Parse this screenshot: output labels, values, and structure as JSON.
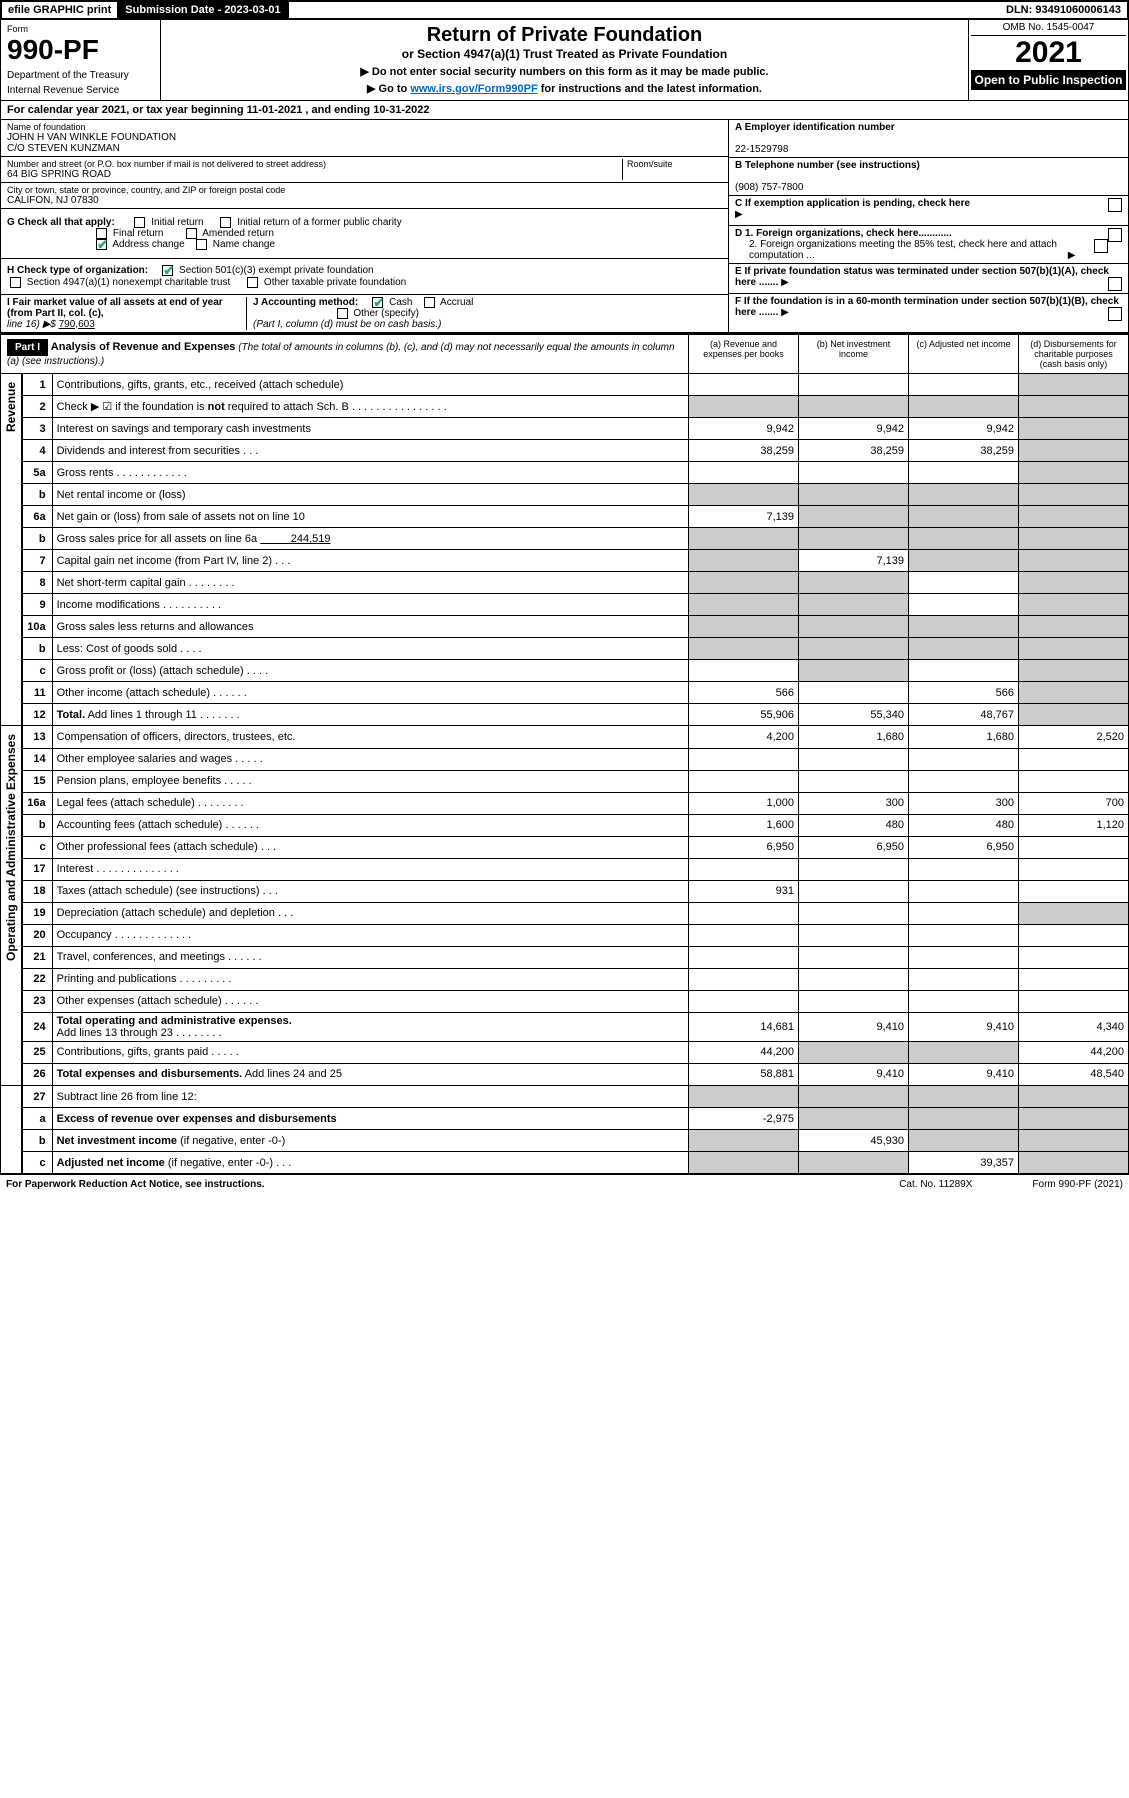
{
  "topbar": {
    "efile": "efile GRAPHIC print",
    "subdate_label": "Submission Date - 2023-03-01",
    "dln": "DLN: 93491060006143"
  },
  "header": {
    "form_label": "Form",
    "form_num": "990-PF",
    "dept1": "Department of the Treasury",
    "dept2": "Internal Revenue Service",
    "title": "Return of Private Foundation",
    "subtitle": "or Section 4947(a)(1) Trust Treated as Private Foundation",
    "note1": "▶ Do not enter social security numbers on this form as it may be made public.",
    "note2_pre": "▶ Go to ",
    "note2_link": "www.irs.gov/Form990PF",
    "note2_post": " for instructions and the latest information.",
    "omb": "OMB No. 1545-0047",
    "year": "2021",
    "inspect": "Open to Public Inspection"
  },
  "calyear": "For calendar year 2021, or tax year beginning 11-01-2021                         , and ending 10-31-2022",
  "id": {
    "name_label": "Name of foundation",
    "name1": "JOHN H VAN WINKLE FOUNDATION",
    "name2": "C/O STEVEN KUNZMAN",
    "addr_label": "Number and street (or P.O. box number if mail is not delivered to street address)",
    "addr": "64 BIG SPRING ROAD",
    "room_label": "Room/suite",
    "city_label": "City or town, state or province, country, and ZIP or foreign postal code",
    "city": "CALIFON, NJ  07830",
    "ein_label": "A Employer identification number",
    "ein": "22-1529798",
    "tel_label": "B Telephone number (see instructions)",
    "tel": "(908) 757-7800",
    "c_label": "C If exemption application is pending, check here",
    "d1": "D 1. Foreign organizations, check here............",
    "d2": "2. Foreign organizations meeting the 85% test, check here and attach computation ...",
    "e": "E  If private foundation status was terminated under section 507(b)(1)(A), check here .......",
    "f": "F  If the foundation is in a 60-month termination under section 507(b)(1)(B), check here .......",
    "g_label": "G Check all that apply:",
    "g_initial": "Initial return",
    "g_initial_former": "Initial return of a former public charity",
    "g_final": "Final return",
    "g_amended": "Amended return",
    "g_address": "Address change",
    "g_name": "Name change",
    "h_label": "H Check type of organization:",
    "h_501": "Section 501(c)(3) exempt private foundation",
    "h_4947": "Section 4947(a)(1) nonexempt charitable trust",
    "h_other": "Other taxable private foundation",
    "i_label": "I Fair market value of all assets at end of year (from Part II, col. (c),",
    "i_line": "line 16) ▶$",
    "i_val": "790,603",
    "j_label": "J Accounting method:",
    "j_cash": "Cash",
    "j_accrual": "Accrual",
    "j_other": "Other (specify)",
    "j_note": "(Part I, column (d) must be on cash basis.)"
  },
  "part1": {
    "tag": "Part I",
    "title": "Analysis of Revenue and Expenses",
    "title_note": "(The total of amounts in columns (b), (c), and (d) may not necessarily equal the amounts in column (a) (see instructions).)",
    "col_a": "(a)   Revenue and expenses per books",
    "col_b": "(b)  Net investment income",
    "col_c": "(c)  Adjusted net income",
    "col_d": "(d)  Disbursements for charitable purposes (cash basis only)"
  },
  "side": {
    "rev": "Revenue",
    "exp": "Operating and Administrative Expenses"
  },
  "rows": [
    {
      "n": "1",
      "d": "",
      "a": "",
      "b": "",
      "c": "",
      "greyD": true
    },
    {
      "n": "2",
      "d": "",
      "a": "",
      "b": "",
      "c": "",
      "greyA": true,
      "greyB": true,
      "greyC": true,
      "greyD": true,
      "bold": false
    },
    {
      "n": "3",
      "d": "",
      "a": "9,942",
      "b": "9,942",
      "c": "9,942",
      "greyD": true
    },
    {
      "n": "4",
      "d": "",
      "a": "38,259",
      "b": "38,259",
      "c": "38,259",
      "greyD": true
    },
    {
      "n": "5a",
      "d": "",
      "a": "",
      "b": "",
      "c": "",
      "greyD": true
    },
    {
      "n": "b",
      "d": "",
      "a": "",
      "b": "",
      "c": "",
      "greyA": true,
      "greyB": true,
      "greyC": true,
      "greyD": true
    },
    {
      "n": "6a",
      "d": "",
      "a": "7,139",
      "b": "",
      "c": "",
      "greyB": true,
      "greyC": true,
      "greyD": true
    },
    {
      "n": "b",
      "d": "",
      "a": "",
      "b": "",
      "c": "",
      "greyA": true,
      "greyB": true,
      "greyC": true,
      "greyD": true
    },
    {
      "n": "7",
      "d": "",
      "a": "",
      "b": "7,139",
      "c": "",
      "greyA": true,
      "greyC": true,
      "greyD": true
    },
    {
      "n": "8",
      "d": "",
      "a": "",
      "b": "",
      "c": "",
      "greyA": true,
      "greyB": true,
      "greyD": true
    },
    {
      "n": "9",
      "d": "",
      "a": "",
      "b": "",
      "c": "",
      "greyA": true,
      "greyB": true,
      "greyD": true
    },
    {
      "n": "10a",
      "d": "",
      "a": "",
      "b": "",
      "c": "",
      "greyA": true,
      "greyB": true,
      "greyC": true,
      "greyD": true
    },
    {
      "n": "b",
      "d": "",
      "a": "",
      "b": "",
      "c": "",
      "greyA": true,
      "greyB": true,
      "greyC": true,
      "greyD": true
    },
    {
      "n": "c",
      "d": "",
      "a": "",
      "b": "",
      "c": "",
      "greyB": true,
      "greyD": true
    },
    {
      "n": "11",
      "d": "",
      "a": "566",
      "b": "",
      "c": "566",
      "greyD": true
    },
    {
      "n": "12",
      "d": "",
      "a": "55,906",
      "b": "55,340",
      "c": "48,767",
      "bold": true,
      "greyD": true
    }
  ],
  "exp_rows": [
    {
      "n": "13",
      "d": "2,520",
      "a": "4,200",
      "b": "1,680",
      "c": "1,680"
    },
    {
      "n": "14",
      "d": "",
      "a": "",
      "b": "",
      "c": ""
    },
    {
      "n": "15",
      "d": "",
      "a": "",
      "b": "",
      "c": ""
    },
    {
      "n": "16a",
      "d": "700",
      "a": "1,000",
      "b": "300",
      "c": "300"
    },
    {
      "n": "b",
      "d": "1,120",
      "a": "1,600",
      "b": "480",
      "c": "480"
    },
    {
      "n": "c",
      "d": "",
      "a": "6,950",
      "b": "6,950",
      "c": "6,950"
    },
    {
      "n": "17",
      "d": "",
      "a": "",
      "b": "",
      "c": ""
    },
    {
      "n": "18",
      "d": "",
      "a": "931",
      "b": "",
      "c": ""
    },
    {
      "n": "19",
      "d": "",
      "a": "",
      "b": "",
      "c": "",
      "greyD": true
    },
    {
      "n": "20",
      "d": "",
      "a": "",
      "b": "",
      "c": ""
    },
    {
      "n": "21",
      "d": "",
      "a": "",
      "b": "",
      "c": ""
    },
    {
      "n": "22",
      "d": "",
      "a": "",
      "b": "",
      "c": ""
    },
    {
      "n": "23",
      "d": "",
      "a": "",
      "b": "",
      "c": ""
    },
    {
      "n": "24",
      "d": "4,340",
      "a": "14,681",
      "b": "9,410",
      "c": "9,410",
      "bold": true
    },
    {
      "n": "25",
      "d": "44,200",
      "a": "44,200",
      "b": "",
      "c": "",
      "greyB": true,
      "greyC": true
    },
    {
      "n": "26",
      "d": "48,540",
      "a": "58,881",
      "b": "9,410",
      "c": "9,410",
      "bold": true
    }
  ],
  "bottom_rows": [
    {
      "n": "27",
      "d": "",
      "a": "",
      "b": "",
      "c": "",
      "greyA": true,
      "greyB": true,
      "greyC": true,
      "greyD": true
    },
    {
      "n": "a",
      "d": "",
      "a": "-2,975",
      "b": "",
      "c": "",
      "bold": true,
      "greyB": true,
      "greyC": true,
      "greyD": true
    },
    {
      "n": "b",
      "d": "",
      "a": "",
      "b": "45,930",
      "c": "",
      "bold": true,
      "greyA": true,
      "greyC": true,
      "greyD": true
    },
    {
      "n": "c",
      "d": "",
      "a": "",
      "b": "",
      "c": "39,357",
      "bold": true,
      "greyA": true,
      "greyB": true,
      "greyD": true
    }
  ],
  "footer": {
    "left": "For Paperwork Reduction Act Notice, see instructions.",
    "mid": "Cat. No. 11289X",
    "right": "Form 990-PF (2021)"
  }
}
